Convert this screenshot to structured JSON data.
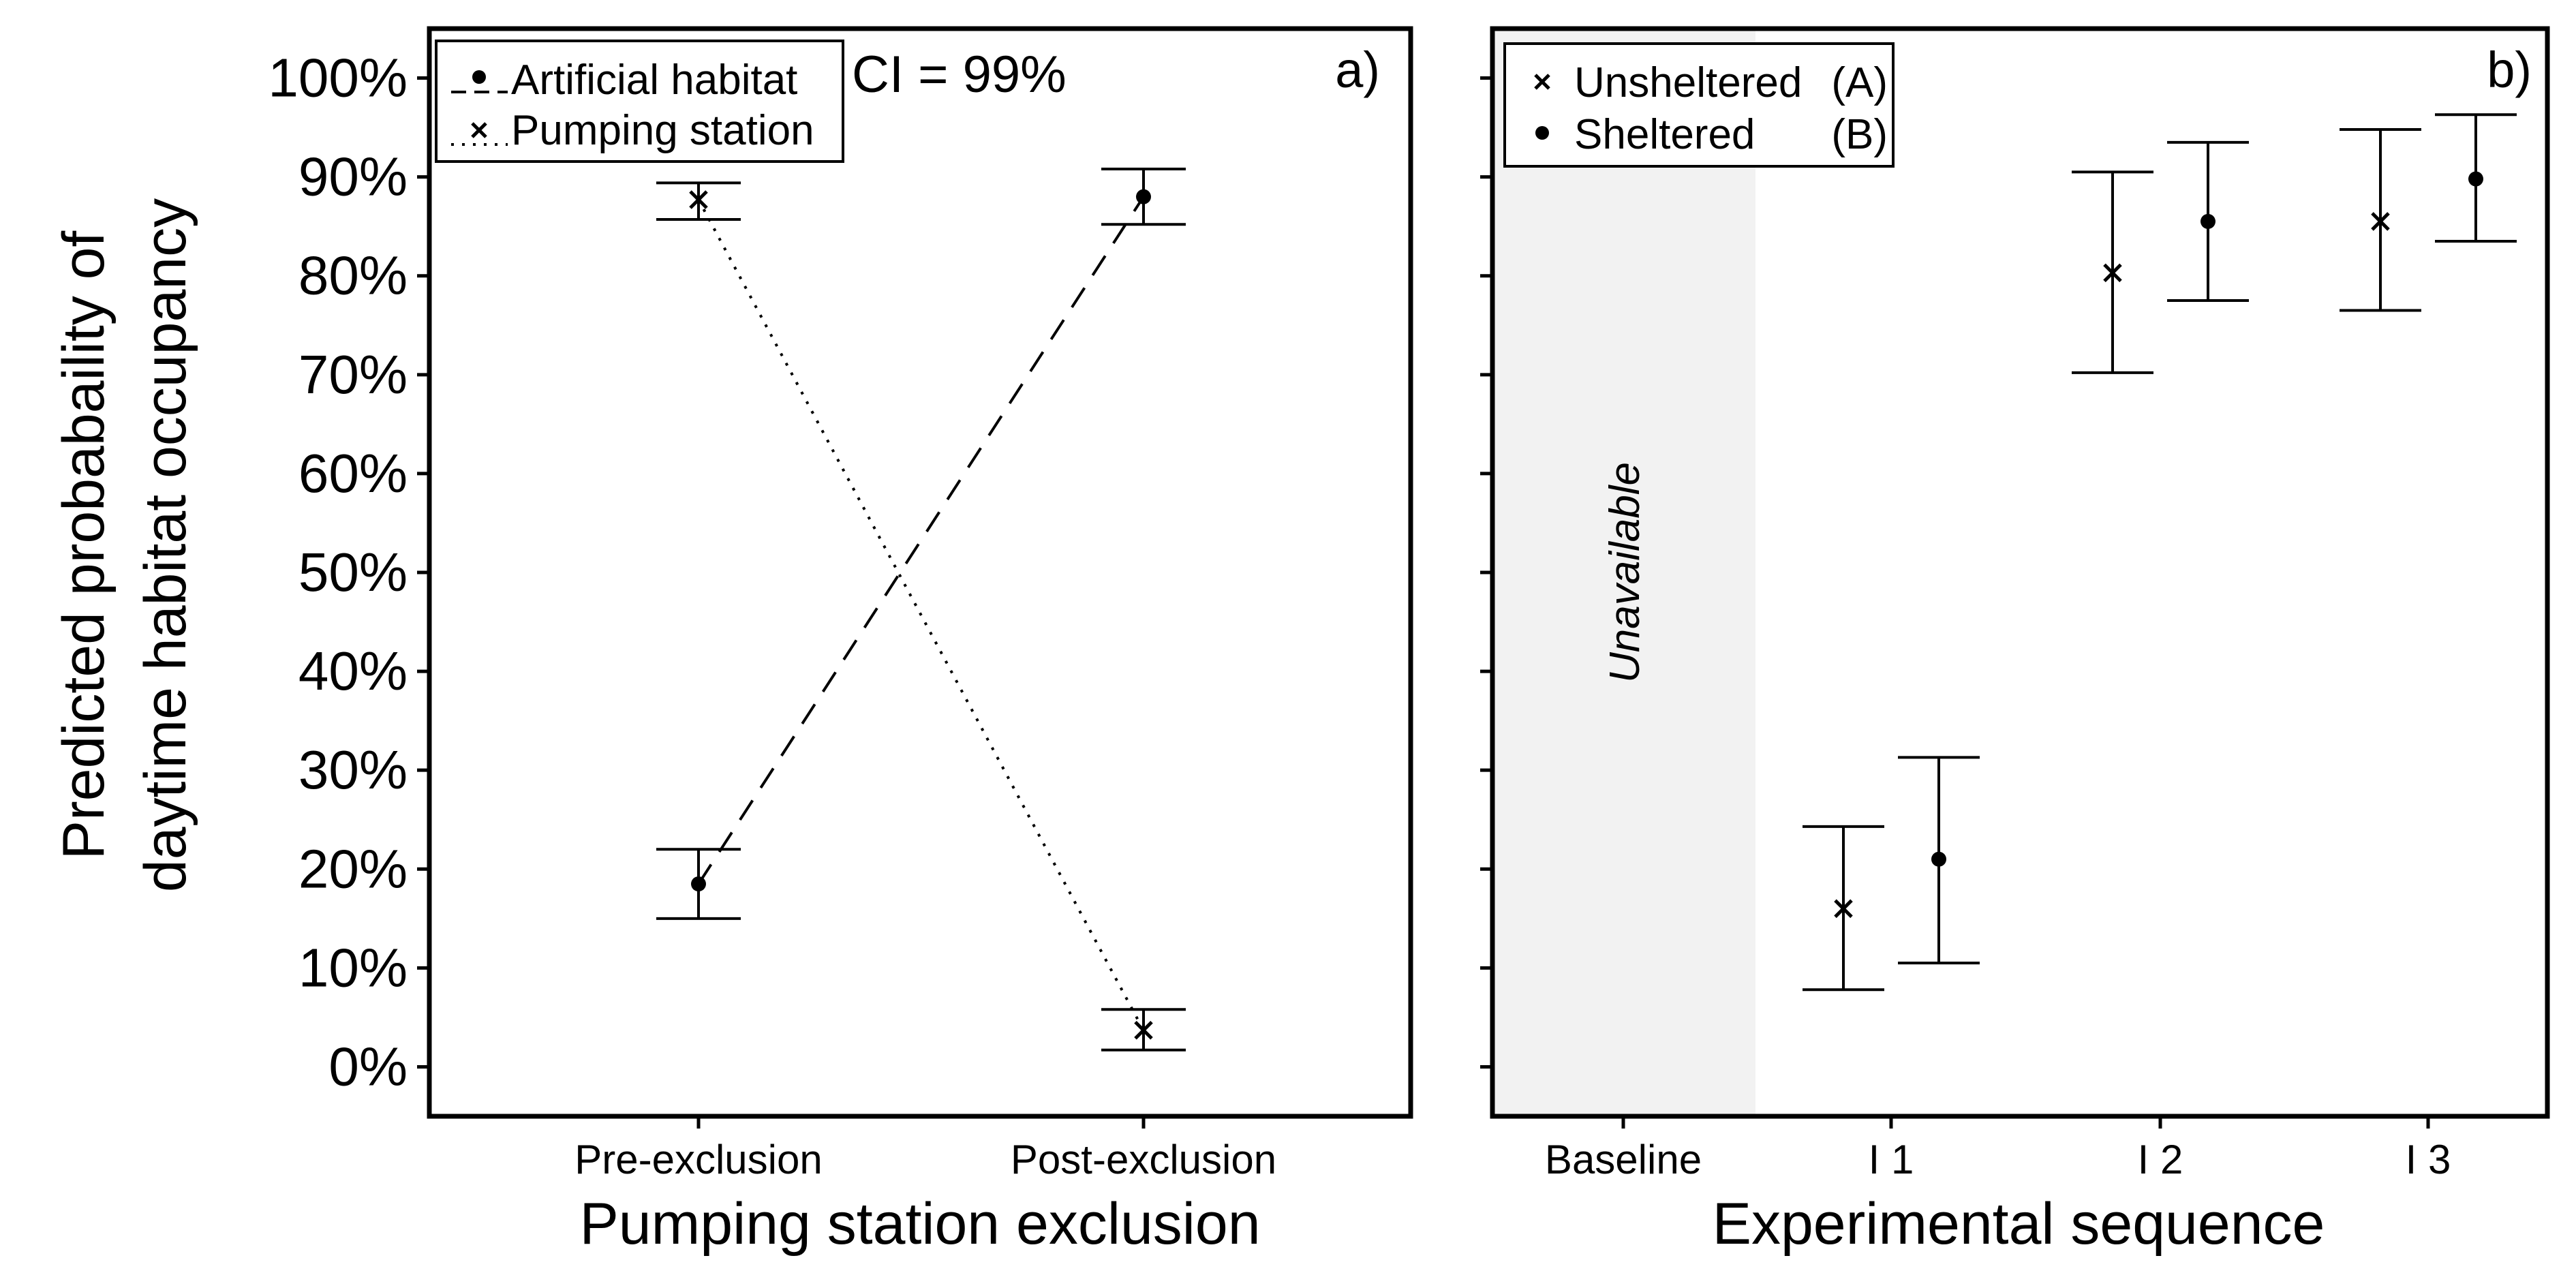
{
  "figure": {
    "ylabel_lines": [
      "Predicted probabaility of",
      "daytime habitat occupancy"
    ]
  },
  "chart_data": [
    {
      "type": "scatter",
      "panel_label": "a)",
      "annotation": "CI = 99%",
      "xlabel": "Pumping station exclusion",
      "categories": [
        "Pre-exclusion",
        "Post-exclusion"
      ],
      "yticks": [
        "0%",
        "10%",
        "20%",
        "30%",
        "40%",
        "50%",
        "60%",
        "70%",
        "80%",
        "90%",
        "100%"
      ],
      "ylim": [
        -0.05,
        1.05
      ],
      "legend_position": "top-left",
      "series": [
        {
          "name": "Artificial habitat",
          "marker": "dot",
          "line": "dashed",
          "values": [
            0.185,
            0.88
          ],
          "ci_low": [
            0.15,
            0.852
          ],
          "ci_high": [
            0.22,
            0.908
          ]
        },
        {
          "name": "Pumping station",
          "marker": "cross",
          "line": "dotted",
          "values": [
            0.877,
            0.037
          ],
          "ci_low": [
            0.857,
            0.017
          ],
          "ci_high": [
            0.894,
            0.058
          ]
        }
      ]
    },
    {
      "type": "scatter",
      "panel_label": "b)",
      "xlabel": "Experimental sequence",
      "categories": [
        "Baseline",
        "I 1",
        "I 2",
        "I 3"
      ],
      "ylim": [
        -0.05,
        1.05
      ],
      "shaded_region": {
        "category": "Baseline",
        "label": "Unavailable",
        "color": "#f2f2f2"
      },
      "legend_position": "top-left",
      "series": [
        {
          "name": "Unsheltered",
          "code": "(A)",
          "marker": "cross",
          "values": [
            null,
            0.16,
            0.803,
            0.855
          ],
          "ci_low": [
            null,
            0.078,
            0.702,
            0.765
          ],
          "ci_high": [
            null,
            0.243,
            0.905,
            0.948
          ]
        },
        {
          "name": "Sheltered",
          "code": "(B)",
          "marker": "dot",
          "values": [
            null,
            0.21,
            0.855,
            0.898
          ],
          "ci_low": [
            null,
            0.105,
            0.775,
            0.835
          ],
          "ci_high": [
            null,
            0.313,
            0.935,
            0.963
          ]
        }
      ]
    }
  ]
}
